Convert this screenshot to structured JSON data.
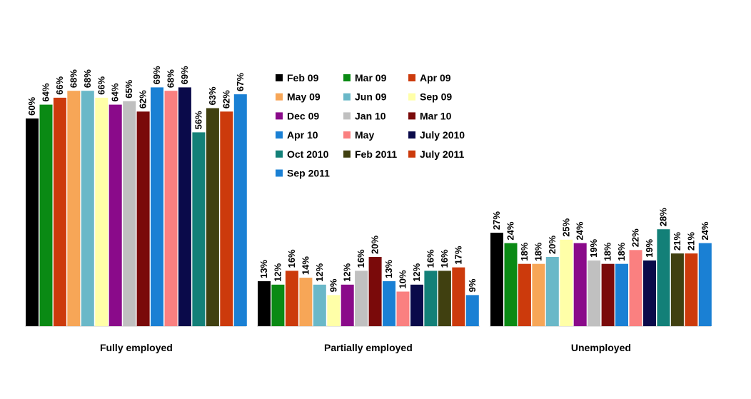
{
  "chart_data": {
    "type": "bar",
    "categories": [
      "Fully employed",
      "Partially employed",
      "Unemployed"
    ],
    "value_suffix": "%",
    "series": [
      {
        "name": "Feb 09",
        "color": "#000000",
        "values": [
          60,
          13,
          27
        ]
      },
      {
        "name": "Mar 09",
        "color": "#0a8a14",
        "values": [
          64,
          12,
          24
        ]
      },
      {
        "name": "Apr 09",
        "color": "#cc3a0c",
        "values": [
          66,
          16,
          18
        ]
      },
      {
        "name": "May 09",
        "color": "#f7a657",
        "values": [
          68,
          14,
          18
        ]
      },
      {
        "name": "Jun 09",
        "color": "#6ab8c8",
        "values": [
          68,
          12,
          20
        ]
      },
      {
        "name": "Sep 09",
        "color": "#ffffa8",
        "values": [
          66,
          9,
          25
        ]
      },
      {
        "name": "Dec 09",
        "color": "#8a0a8a",
        "values": [
          64,
          12,
          24
        ]
      },
      {
        "name": "Jan 10",
        "color": "#c0c0c0",
        "values": [
          65,
          16,
          19
        ]
      },
      {
        "name": "Mar 10",
        "color": "#7a0a0a",
        "values": [
          62,
          20,
          18
        ]
      },
      {
        "name": "Apr 10",
        "color": "#1a80d4",
        "values": [
          69,
          13,
          18
        ]
      },
      {
        "name": "May",
        "color": "#fa8080",
        "values": [
          68,
          10,
          22
        ]
      },
      {
        "name": "July 2010",
        "color": "#0a0a4a",
        "values": [
          69,
          12,
          19
        ]
      },
      {
        "name": "Oct 2010",
        "color": "#138078",
        "values": [
          56,
          16,
          28
        ]
      },
      {
        "name": "Feb 2011",
        "color": "#404010",
        "values": [
          63,
          16,
          21
        ]
      },
      {
        "name": "July 2011",
        "color": "#cc3a0c",
        "values": [
          62,
          17,
          21
        ]
      },
      {
        "name": "Sep 2011",
        "color": "#1a80d4",
        "values": [
          67,
          9,
          24
        ]
      }
    ],
    "ylim": [
      0,
      100
    ],
    "legend_position": "top-center",
    "grid": false
  }
}
